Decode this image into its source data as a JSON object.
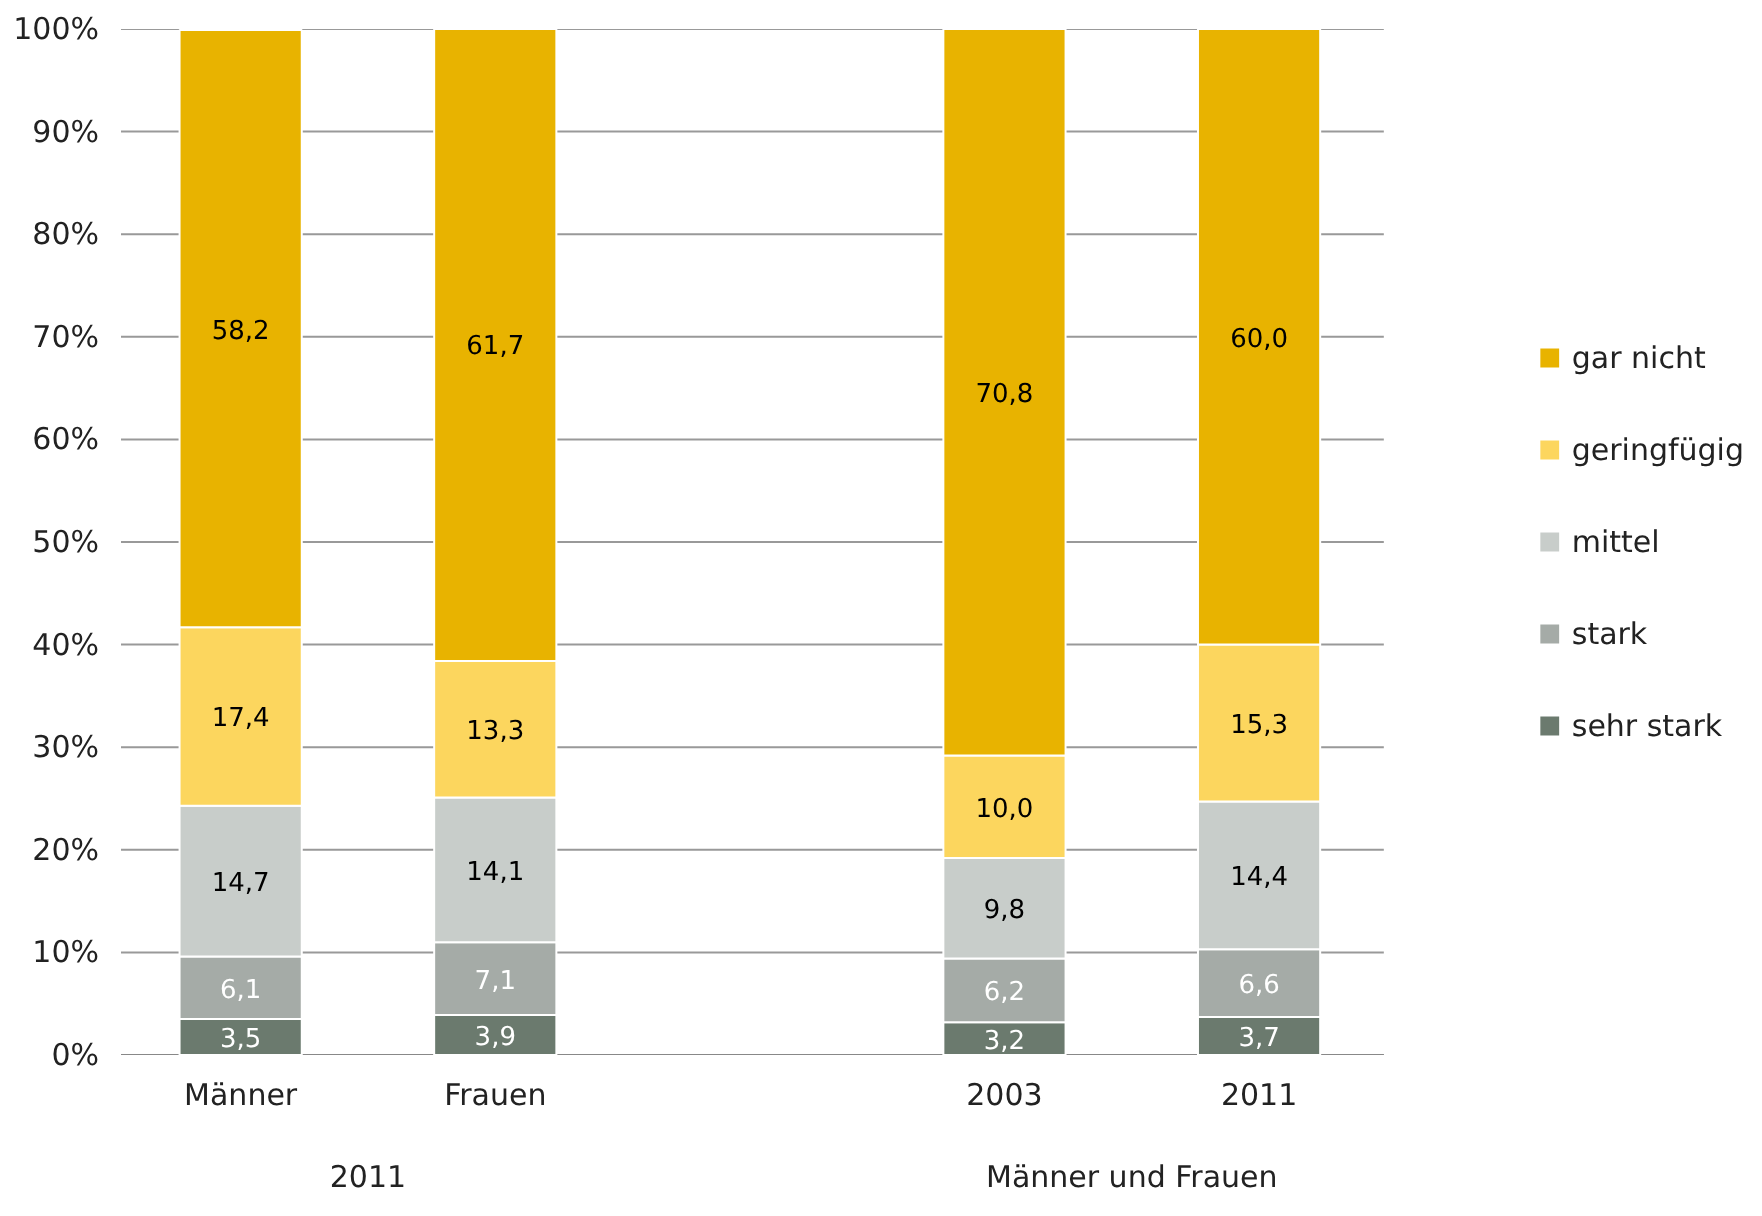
{
  "chart_data": {
    "type": "bar",
    "stacked": true,
    "categories": [
      "Männer",
      "Frauen",
      null,
      "2003",
      "2011"
    ],
    "series": [
      {
        "name": "sehr stark",
        "color": "#6b7a6e",
        "values": [
          3.5,
          3.9,
          null,
          3.2,
          3.7
        ],
        "value_labels": [
          "3,5",
          "3,9",
          null,
          "3,2",
          "3,7"
        ]
      },
      {
        "name": "stark",
        "color": "#a5aba7",
        "values": [
          6.1,
          7.1,
          null,
          6.2,
          6.6
        ],
        "value_labels": [
          "6,1",
          "7,1",
          null,
          "6,2",
          "6,6"
        ]
      },
      {
        "name": "mittel",
        "color": "#c8cdca",
        "values": [
          14.7,
          14.1,
          null,
          9.8,
          14.4
        ],
        "value_labels": [
          "14,7",
          "14,1",
          null,
          "9,8",
          "14,4"
        ]
      },
      {
        "name": "geringfügig",
        "color": "#fcd65e",
        "values": [
          17.4,
          13.3,
          null,
          10.0,
          15.3
        ],
        "value_labels": [
          "17,4",
          "13,3",
          null,
          "10,0",
          "15,3"
        ]
      },
      {
        "name": "gar nicht",
        "color": "#e8b300",
        "values": [
          58.2,
          61.7,
          null,
          70.8,
          60.0
        ],
        "value_labels": [
          "58,2",
          "61,7",
          null,
          "70,8",
          "60,0"
        ]
      }
    ],
    "ylim": [
      0,
      100
    ],
    "yticks": [
      {
        "value": 0,
        "label": "0%"
      },
      {
        "value": 10,
        "label": "10%"
      },
      {
        "value": 20,
        "label": "20%"
      },
      {
        "value": 30,
        "label": "30%"
      },
      {
        "value": 40,
        "label": "40%"
      },
      {
        "value": 50,
        "label": "50%"
      },
      {
        "value": 60,
        "label": "60%"
      },
      {
        "value": 70,
        "label": "70%"
      },
      {
        "value": 80,
        "label": "80%"
      },
      {
        "value": 90,
        "label": "90%"
      },
      {
        "value": 100,
        "label": "100%"
      }
    ],
    "grid": "y",
    "legend": "right",
    "annotations": [
      "2011",
      "Männer und Frauen"
    ]
  }
}
